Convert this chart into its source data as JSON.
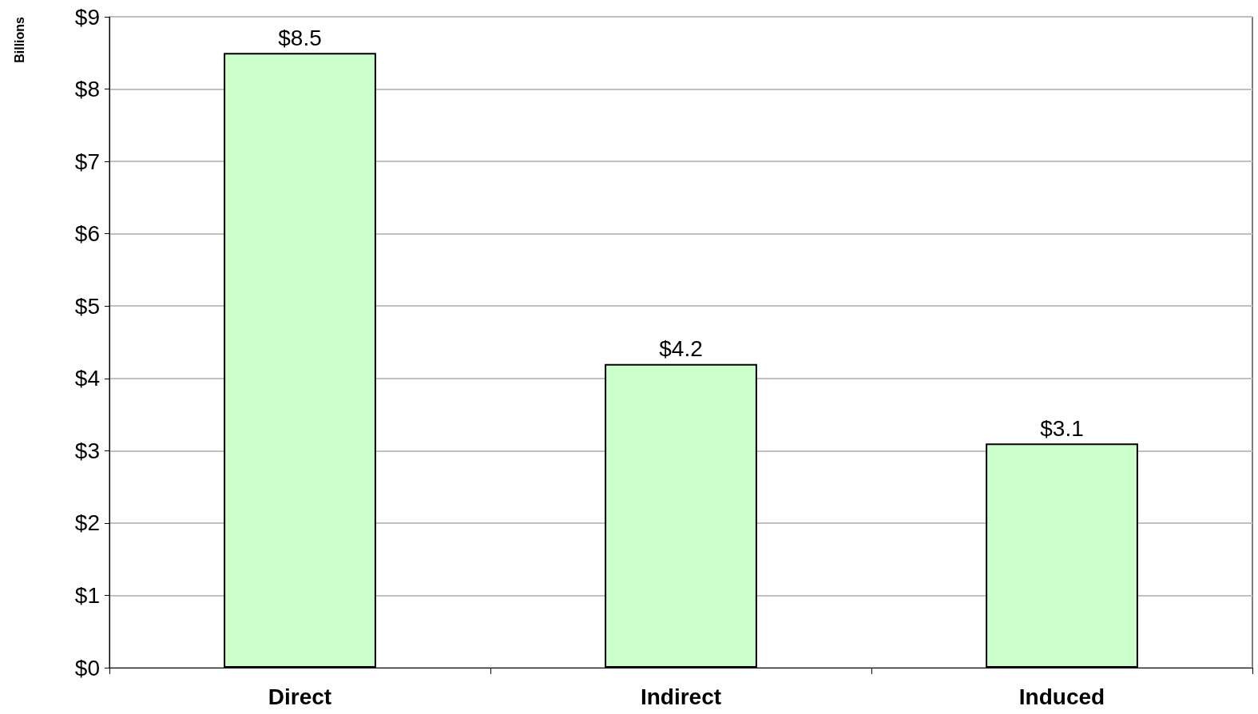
{
  "chart_data": {
    "type": "bar",
    "ylabel": "Billions",
    "categories": [
      "Direct",
      "Indirect",
      "Induced"
    ],
    "values": [
      8.5,
      4.2,
      3.1
    ],
    "value_labels": [
      "$8.5",
      "$4.2",
      "$3.1"
    ],
    "color": "#ccffcc",
    "ylim": [
      0,
      9
    ],
    "yticks": [
      {
        "value": 0,
        "label": "$0"
      },
      {
        "value": 1,
        "label": "$1"
      },
      {
        "value": 2,
        "label": "$2"
      },
      {
        "value": 3,
        "label": "$3"
      },
      {
        "value": 4,
        "label": "$4"
      },
      {
        "value": 5,
        "label": "$5"
      },
      {
        "value": 6,
        "label": "$6"
      },
      {
        "value": 7,
        "label": "$7"
      },
      {
        "value": 8,
        "label": "$8"
      },
      {
        "value": 9,
        "label": "$9"
      }
    ],
    "grid": "y"
  }
}
